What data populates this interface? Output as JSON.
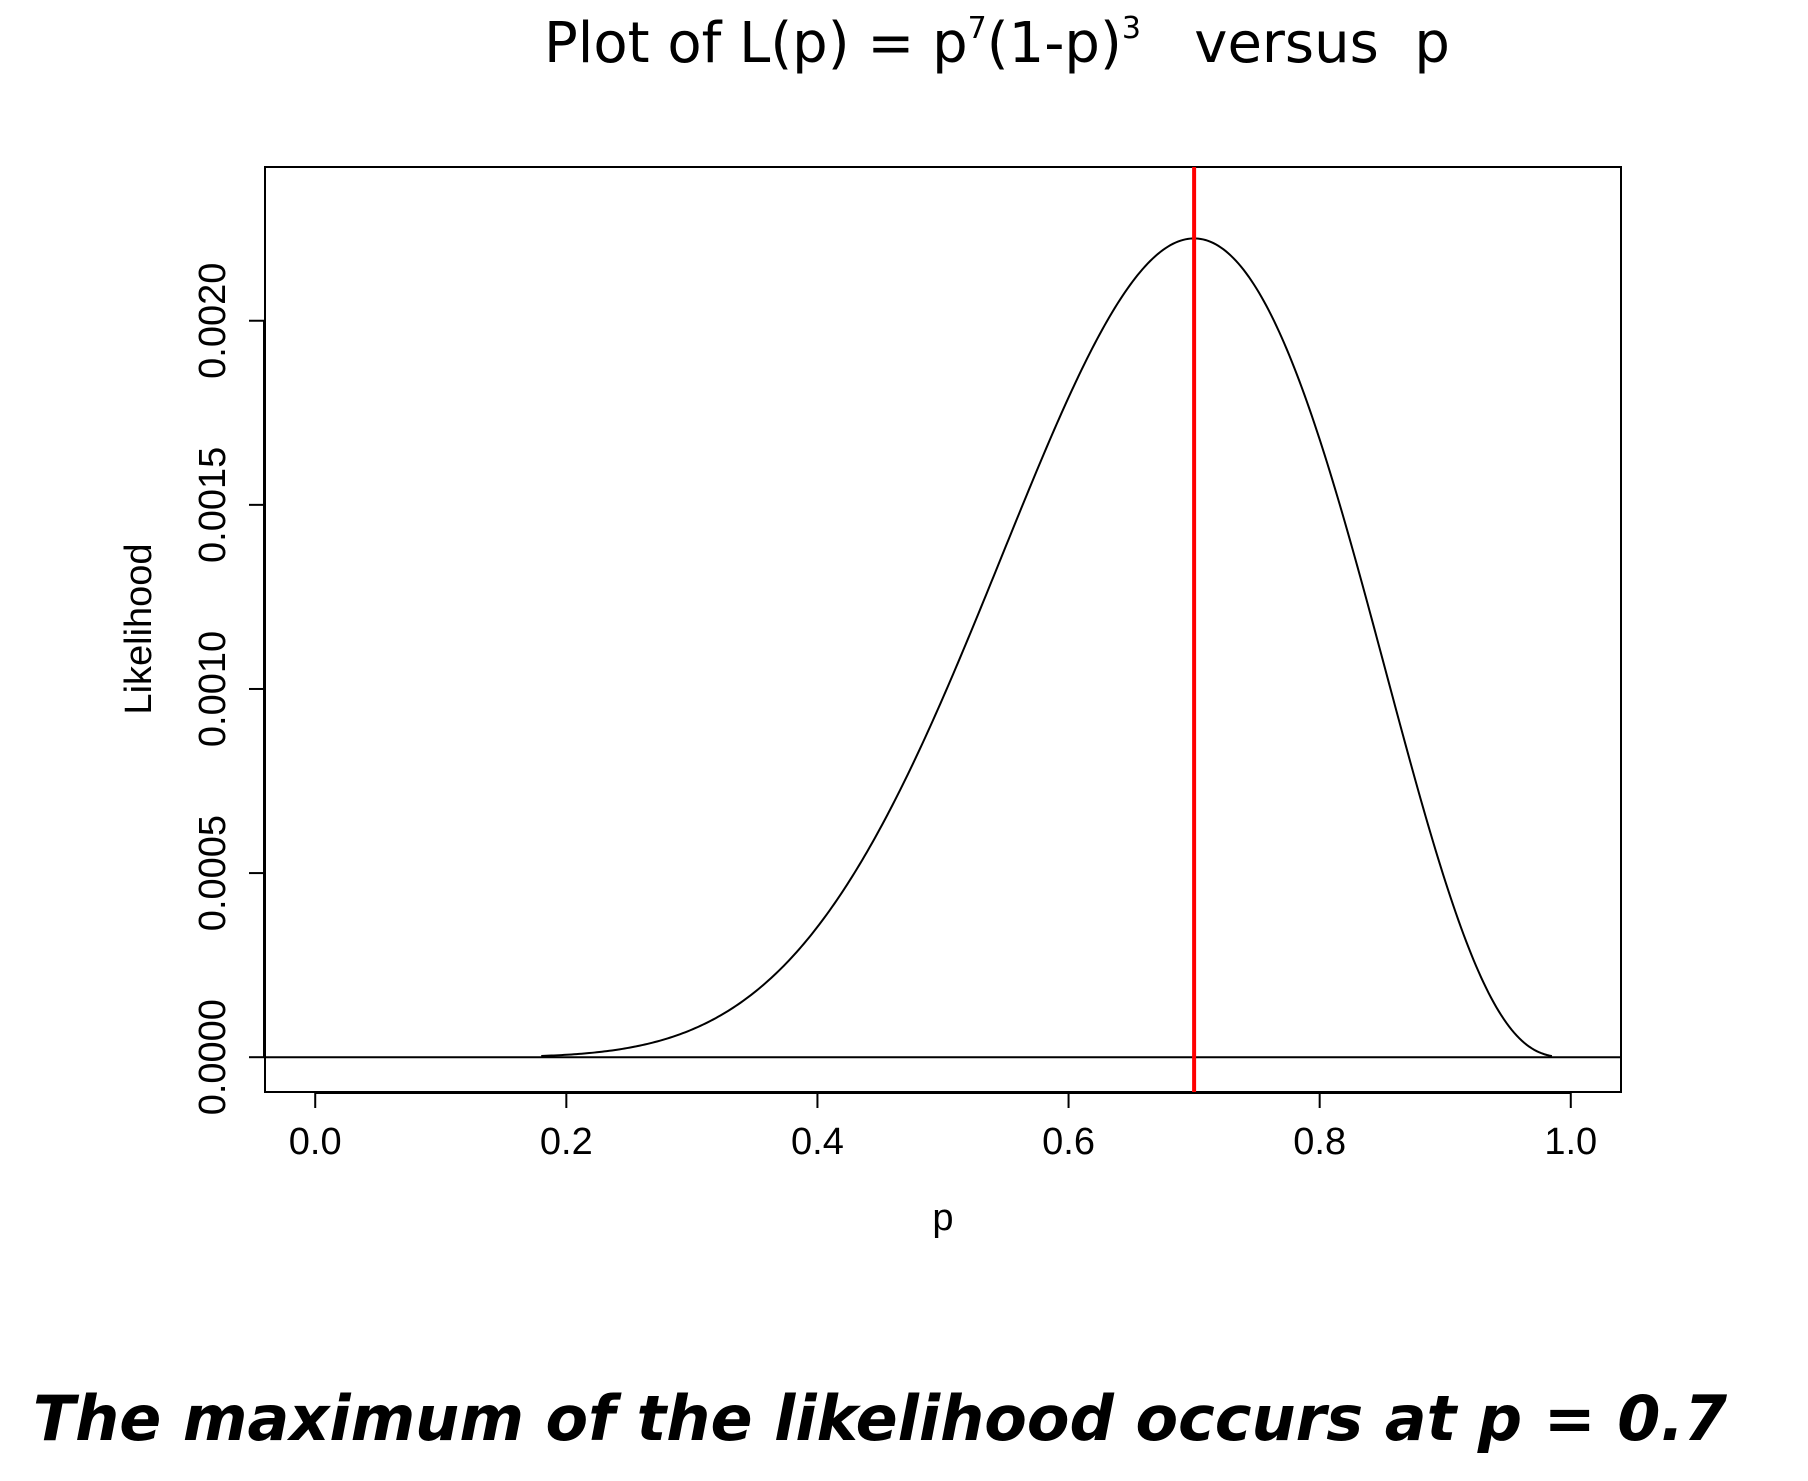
{
  "chart_data": {
    "type": "line",
    "title": {
      "prefix": "Plot of L(p) = p",
      "sup1": "7",
      "middle": "(1-p)",
      "sup2": "3",
      "suffix": "   versus  p"
    },
    "xlabel": "p",
    "ylabel": "Likelihood",
    "xlim": [
      -0.04,
      1.04
    ],
    "ylim": [
      -9.45e-05,
      0.0024175
    ],
    "x_ticks": [
      "0.0",
      "0.2",
      "0.4",
      "0.6",
      "0.8",
      "1.0"
    ],
    "y_ticks": [
      "0.0000",
      "0.0005",
      "0.0010",
      "0.0015",
      "0.0020"
    ],
    "function": "p^7 * (1-p)^3",
    "curve_x_range": [
      0.18,
      0.985
    ],
    "series": [
      {
        "color": "#000000",
        "x": [
          0.18,
          0.2,
          0.25,
          0.3,
          0.35,
          0.4,
          0.45,
          0.5,
          0.55,
          0.6,
          0.65,
          0.7,
          0.75,
          0.8,
          0.85,
          0.9,
          0.95,
          0.985
        ],
        "y": [
          3.3e-06,
          6.6e-06,
          2.61e-05,
          7.5e-05,
          0.0001721,
          0.0003539,
          0.0006228,
          0.0009766,
          0.0013845,
          0.0017916,
          0.0021016,
          0.0022236,
          0.0020857,
          0.0016777,
          0.0010829,
          0.0004783,
          8.72e-05,
          3e-06
        ]
      }
    ],
    "reference_lines": [
      {
        "orientation": "vertical",
        "x": 0.7,
        "color": "#ff0000"
      },
      {
        "orientation": "horizontal",
        "y": 0,
        "color": "#000000"
      }
    ],
    "grid": false,
    "legend": "none"
  },
  "caption": "The maximum of the likelihood occurs at p = 0.7"
}
